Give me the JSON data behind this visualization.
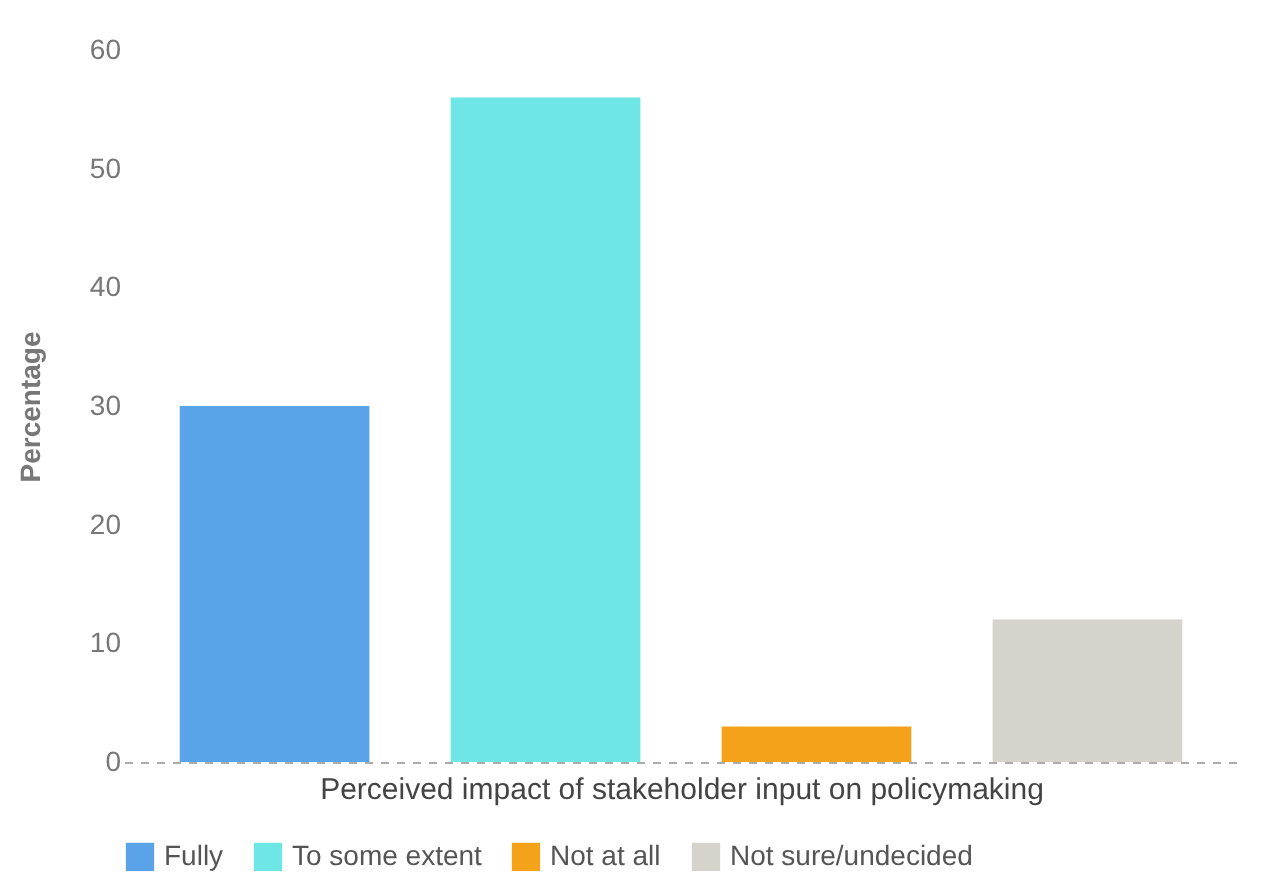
{
  "chart_data": {
    "type": "bar",
    "xlabel": "Perceived impact of stakeholder input on policymaking",
    "ylabel": "Percentage",
    "categories": [
      null
    ],
    "series": [
      {
        "name": "Fully",
        "color": "#5aa3e8",
        "values": [
          30
        ]
      },
      {
        "name": "To some extent",
        "color": "#6ee6e6",
        "values": [
          56
        ]
      },
      {
        "name": "Not at all",
        "color": "#f5a21b",
        "values": [
          3
        ]
      },
      {
        "name": "Not sure/undecided",
        "color": "#d6d3cc",
        "values": [
          12
        ]
      }
    ],
    "ylim": [
      0,
      60
    ],
    "yticks": [
      0,
      10,
      20,
      30,
      40,
      50,
      60
    ],
    "grid": false,
    "legend": "bottom"
  }
}
